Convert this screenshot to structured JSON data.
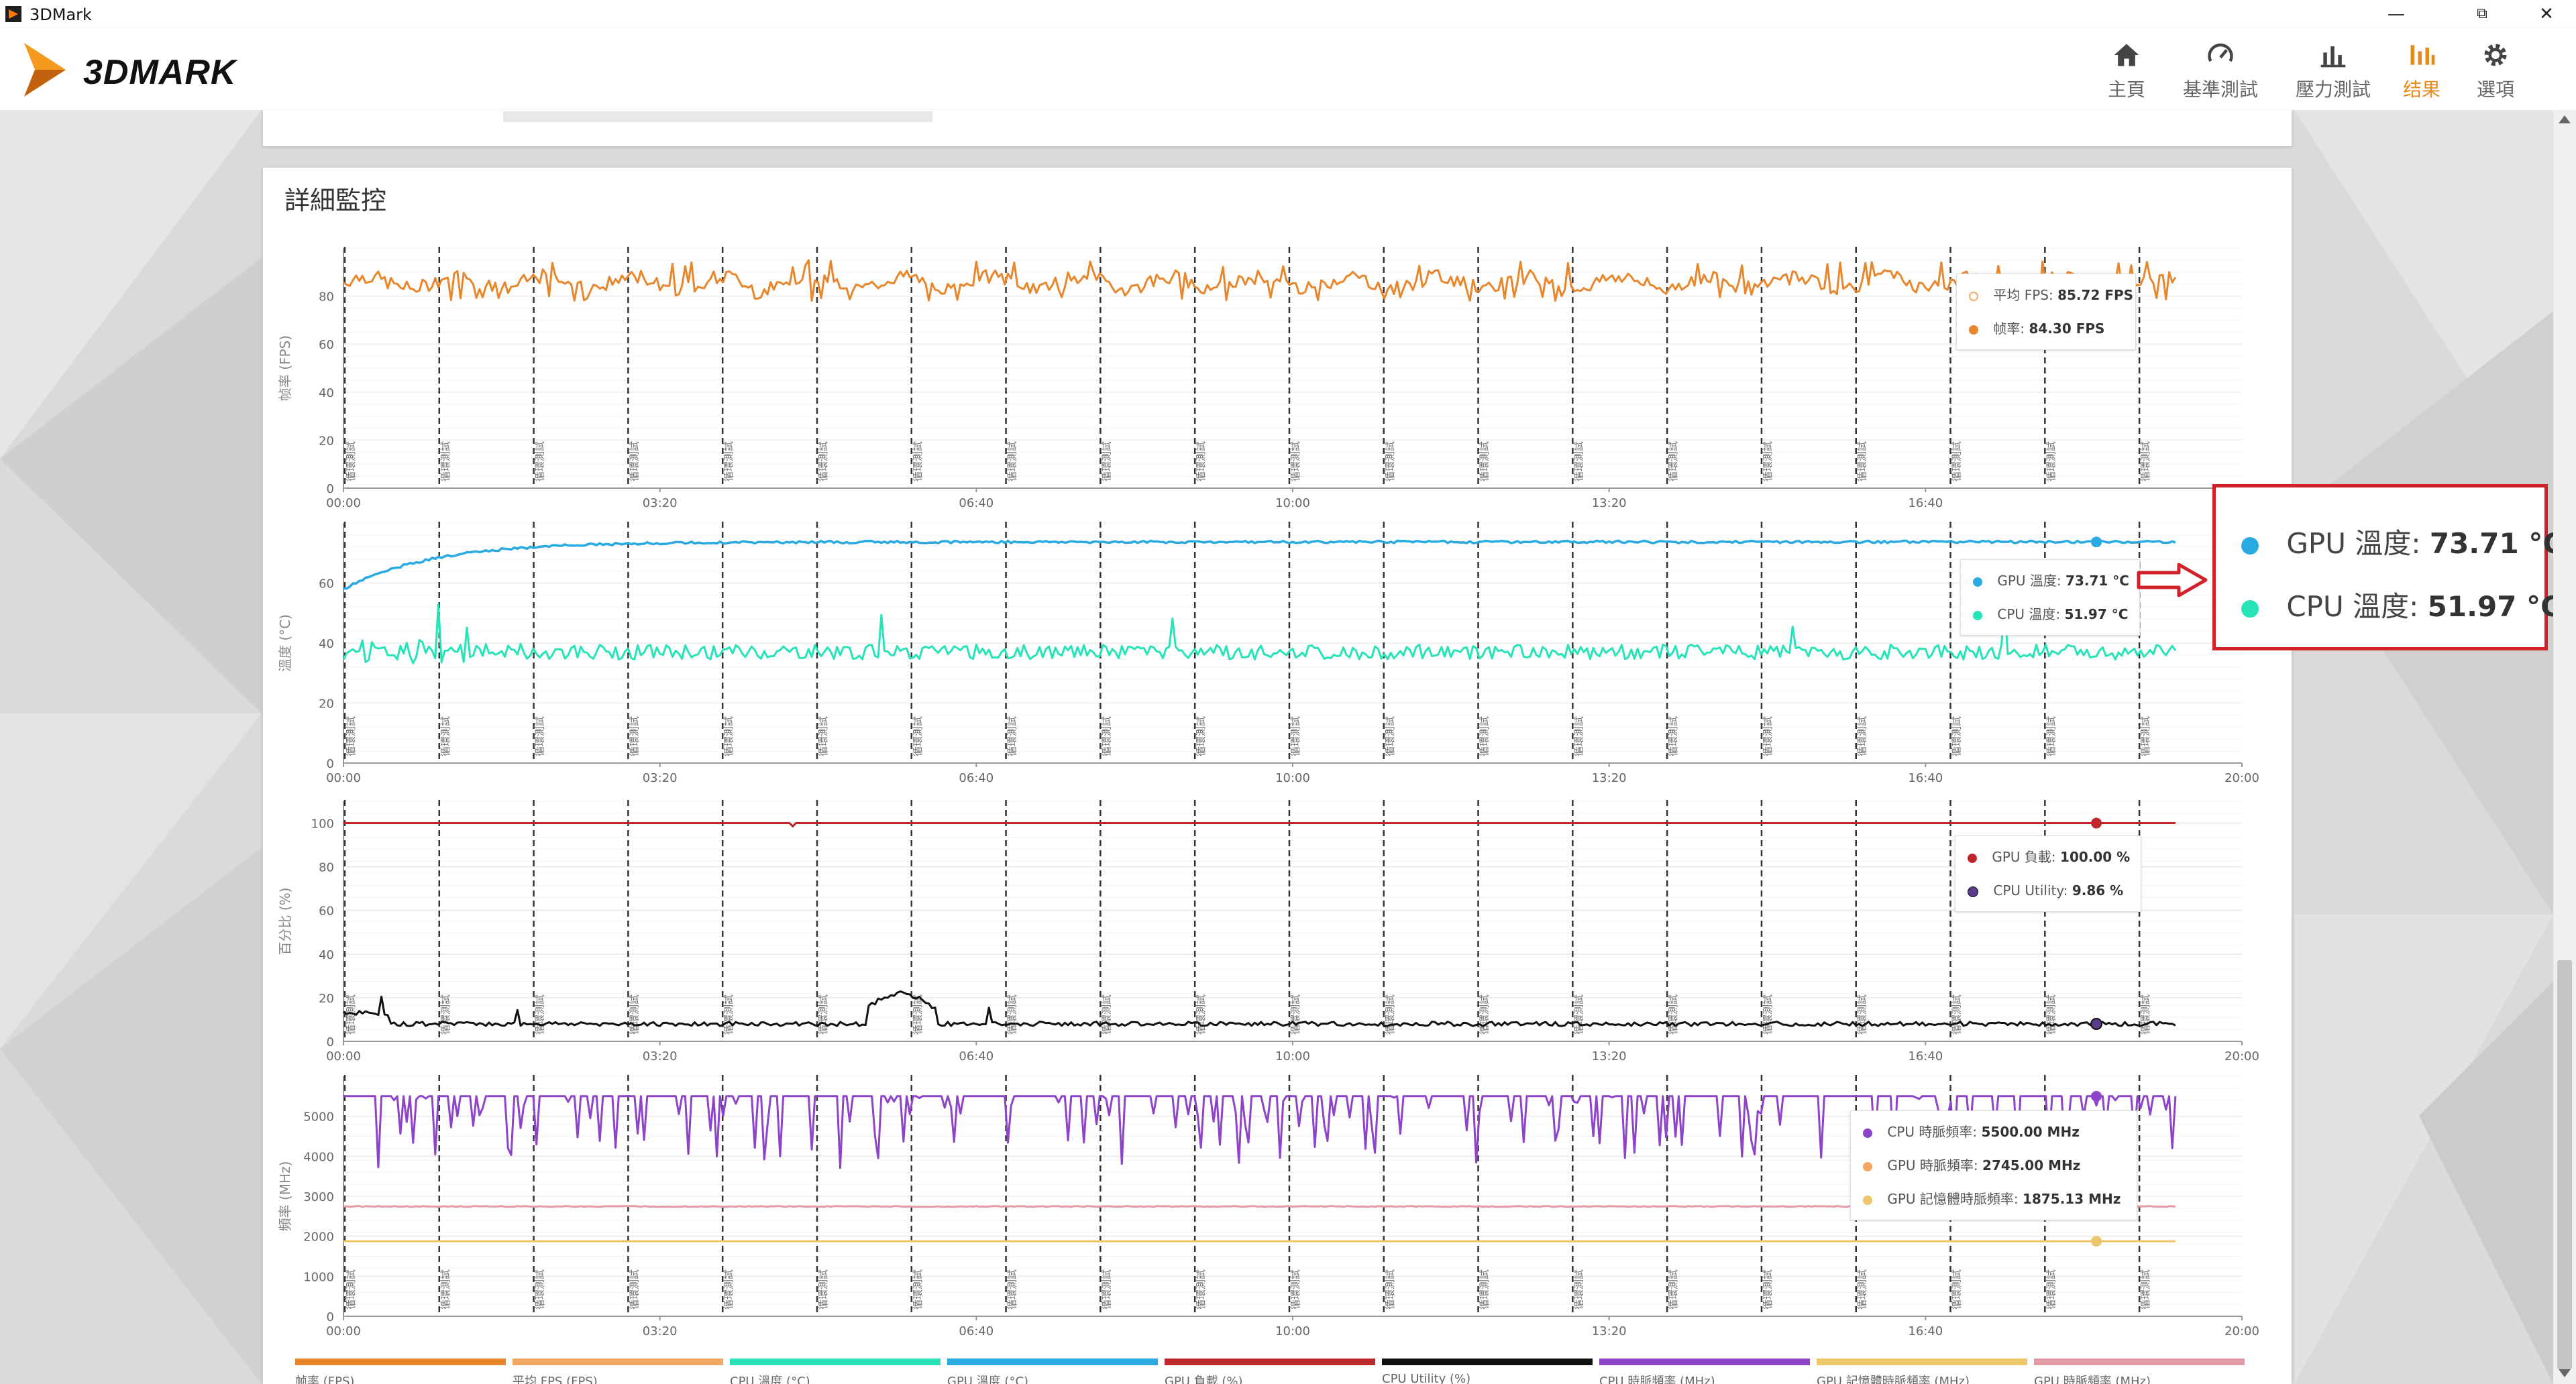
{
  "window": {
    "title": "3DMark"
  },
  "app": {
    "logo_text": "3DMARK"
  },
  "nav": [
    {
      "label": "主頁",
      "icon": "home-icon"
    },
    {
      "label": "基準測試",
      "icon": "gauge-icon"
    },
    {
      "label": "壓力測試",
      "icon": "bar-chart-icon"
    },
    {
      "label": "结果",
      "icon": "results-icon",
      "active": true
    },
    {
      "label": "選項",
      "icon": "gear-icon"
    }
  ],
  "panel": {
    "title": "詳細監控"
  },
  "colors": {
    "accent": "#e8891c",
    "fps": "#e8862c",
    "fps_avg": "#f2a865",
    "gpu_temp": "#29abe2",
    "cpu_temp": "#27e3b8",
    "gpu_load": "#c0272d",
    "cpu_util": "#111111",
    "cpu_clock": "#8e44c9",
    "gpu_clock": "#e59aa8",
    "gpu_mem_clock": "#ecc66a",
    "callout_border": "#d32028"
  },
  "chart_data": [
    {
      "type": "line",
      "ylabel": "帧率 (FPS)",
      "ylim": [
        0,
        100
      ],
      "yticks": [
        0,
        20,
        40,
        60,
        80
      ],
      "xticks": [
        "00:00",
        "03:20",
        "06:40",
        "10:00",
        "13:20",
        "16:40"
      ],
      "series": [
        {
          "name": "平均 FPS",
          "value_label": "85.72 FPS",
          "mean": 85.72
        },
        {
          "name": "帧率",
          "value_label": "84.30 FPS",
          "mean": 85.7,
          "range": [
            78,
            95
          ]
        }
      ],
      "markers": {
        "label": "循環測試",
        "count": 20
      }
    },
    {
      "type": "line",
      "ylabel": "溫度 (°C)",
      "ylim": [
        0,
        80
      ],
      "yticks": [
        0,
        20,
        40,
        60
      ],
      "xticks": [
        "00:00",
        "03:20",
        "06:40",
        "10:00",
        "13:20",
        "16:40",
        "20:00"
      ],
      "series": [
        {
          "name": "GPU 溫度",
          "value_label": "73.71 °C",
          "start": 58,
          "plateau": 73.7
        },
        {
          "name": "CPU 溫度",
          "value_label": "51.97 °C",
          "baseline": 37,
          "spikes_max": 55
        }
      ],
      "markers": {
        "label": "循環測試",
        "count": 20
      }
    },
    {
      "type": "line",
      "ylabel": "百分比 (%)",
      "ylim": [
        0,
        110
      ],
      "yticks": [
        0,
        20,
        40,
        60,
        80,
        100
      ],
      "xticks": [
        "00:00",
        "03:20",
        "06:40",
        "10:00",
        "13:20",
        "16:40",
        "20:00"
      ],
      "series": [
        {
          "name": "GPU 負載",
          "value_label": "100.00 %",
          "mean": 100
        },
        {
          "name": "CPU Utility",
          "value_label": "9.86 %",
          "mean": 9,
          "peak": 21
        }
      ],
      "markers": {
        "label": "循環測試",
        "count": 20
      }
    },
    {
      "type": "line",
      "ylabel": "頻率 (MHz)",
      "ylim": [
        0,
        6000
      ],
      "yticks": [
        0,
        1000,
        2000,
        3000,
        4000,
        5000
      ],
      "xticks": [
        "00:00",
        "03:20",
        "06:40",
        "10:00",
        "13:20",
        "16:40",
        "20:00"
      ],
      "series": [
        {
          "name": "CPU 時脈頻率",
          "value_label": "5500.00 MHz",
          "max": 5500,
          "dips_to": 3700
        },
        {
          "name": "GPU 時脈頻率",
          "value_label": "2745.00 MHz",
          "mean": 2745
        },
        {
          "name": "GPU 記憶體時脈頻率",
          "value_label": "1875.13 MHz",
          "mean": 1875.13
        }
      ],
      "markers": {
        "label": "循環測試",
        "count": 20
      }
    }
  ],
  "callout": {
    "gpu_label": "GPU 溫度:",
    "gpu_value": "73.71 °C",
    "cpu_label": "CPU 溫度:",
    "cpu_value": "51.97 °C"
  },
  "bottom_legend": [
    "帧率 (FPS)",
    "平均 FPS (FPS)",
    "CPU 溫度 (°C)",
    "GPU 溫度 (°C)",
    "GPU 負載 (%)",
    "CPU Utility (%)",
    "CPU 時脈頻率 (MHz)",
    "GPU 記憶體時脈頻率 (MHz)",
    "GPU 時脈頻率 (MHz)"
  ]
}
